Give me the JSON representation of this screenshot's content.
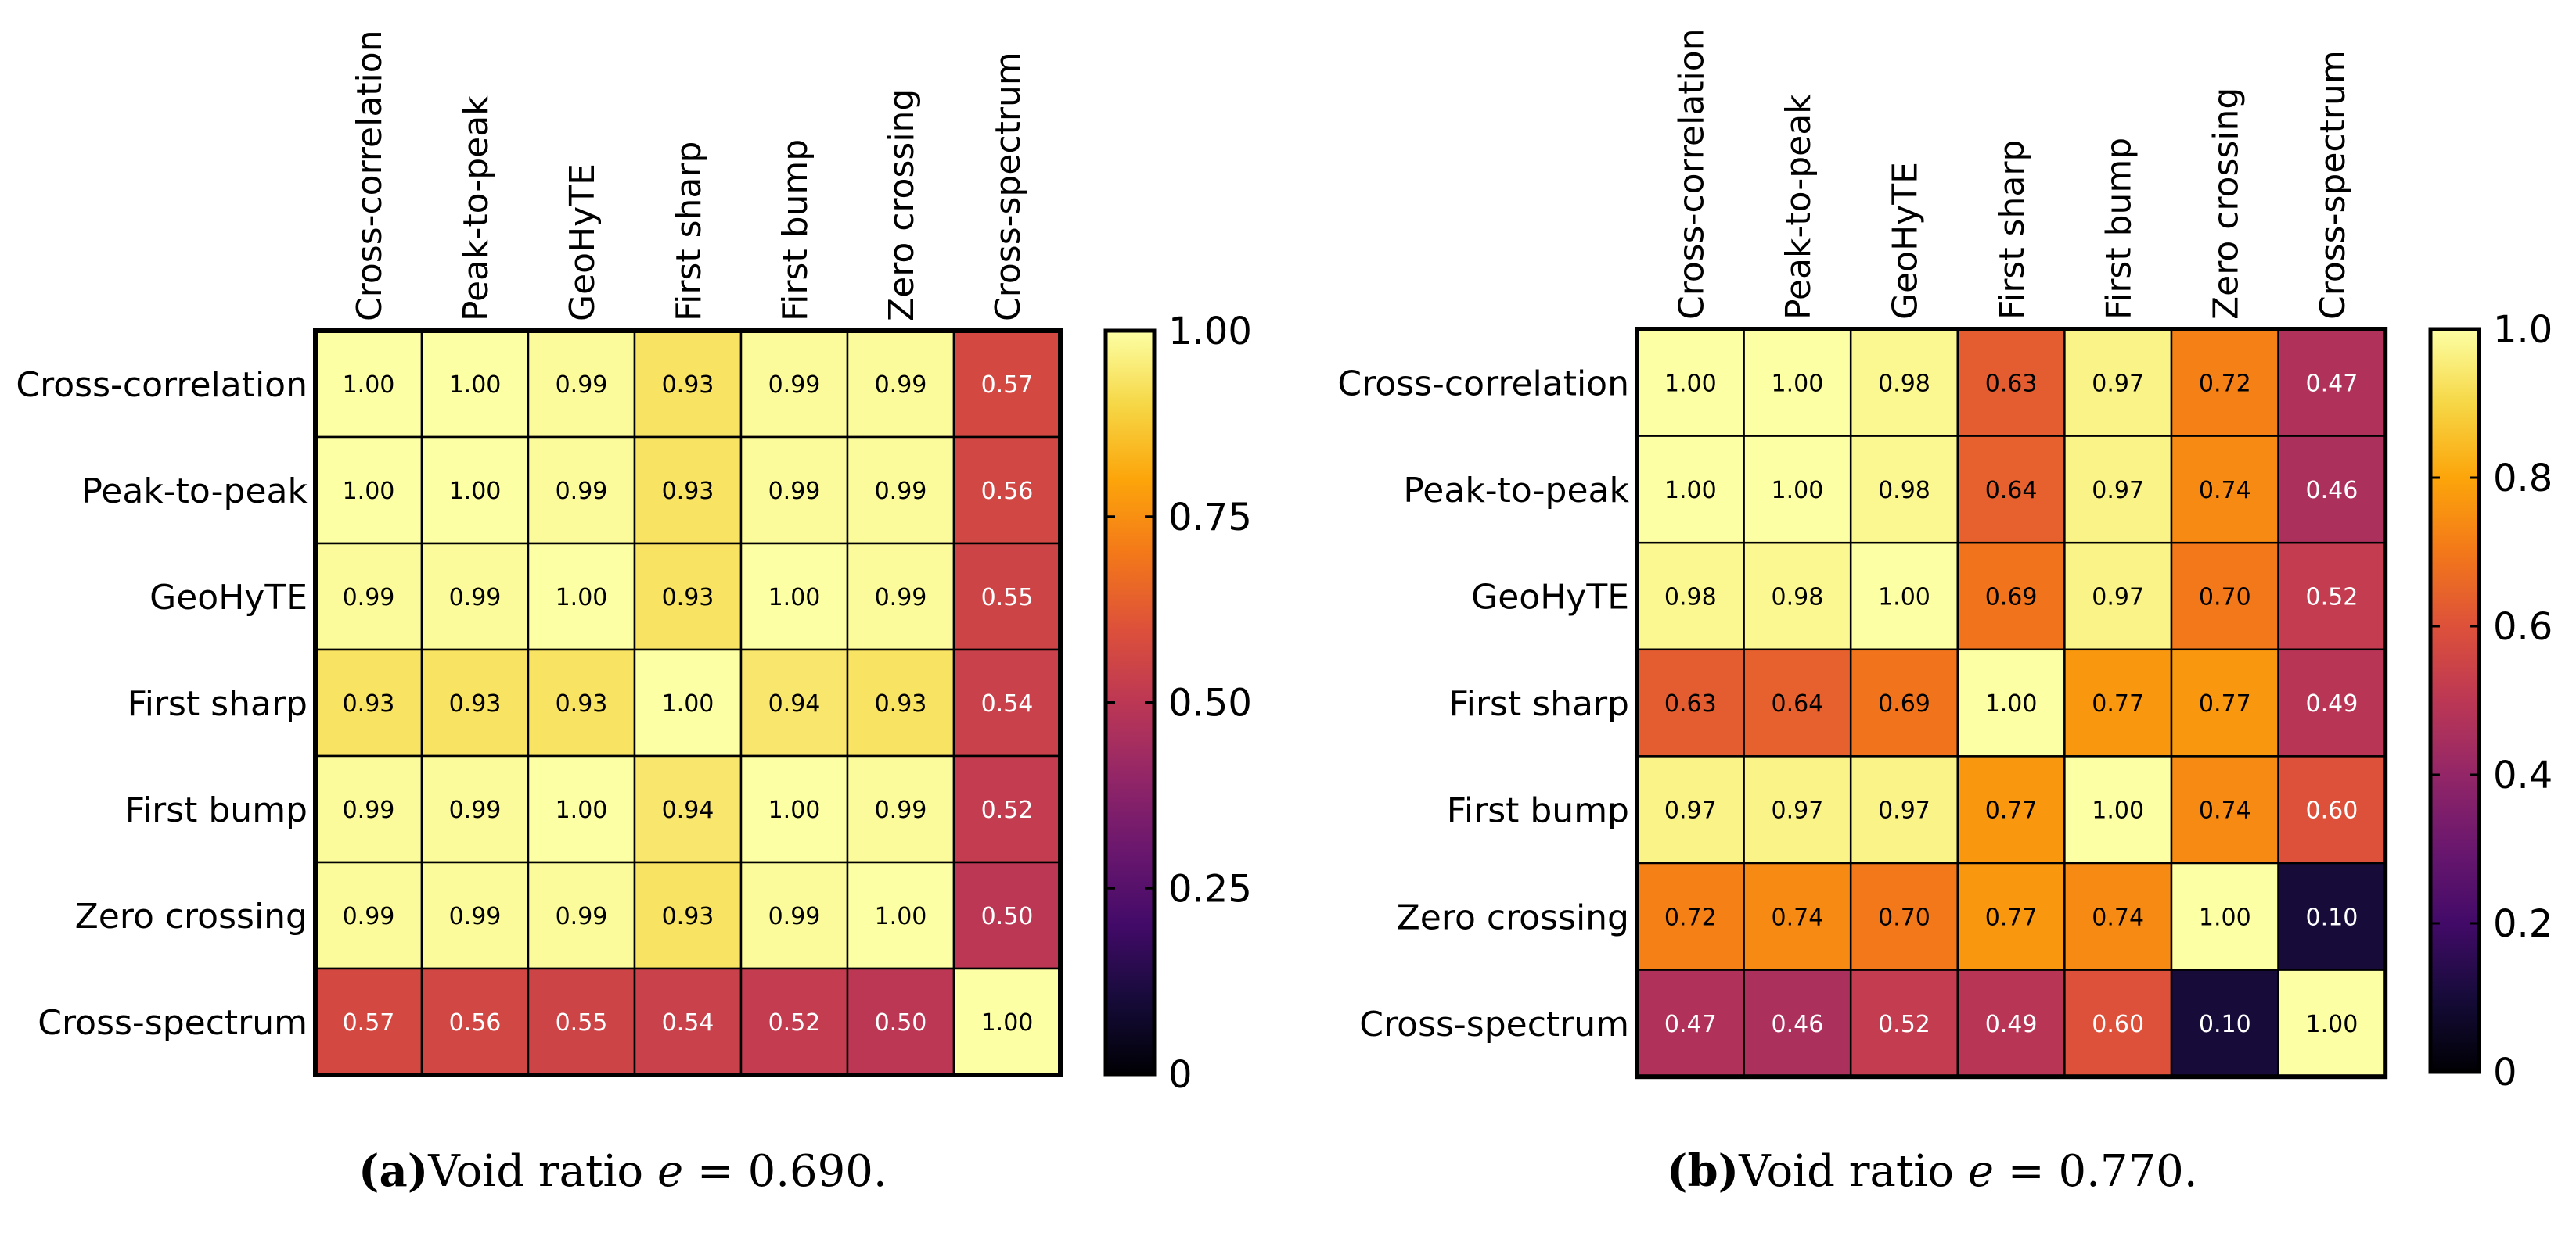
{
  "chart_data": [
    {
      "type": "heatmap",
      "caption_label": "(a)",
      "caption_text": "Void ratio",
      "caption_var": "e",
      "caption_eq": " = 0.690.",
      "labels": [
        "Cross-correlation",
        "Peak-to-peak",
        "GeoHyTE",
        "First sharp",
        "First bump",
        "Zero crossing",
        "Cross-spectrum"
      ],
      "values": [
        [
          1.0,
          1.0,
          0.99,
          0.93,
          0.99,
          0.99,
          0.57
        ],
        [
          1.0,
          1.0,
          0.99,
          0.93,
          0.99,
          0.99,
          0.56
        ],
        [
          0.99,
          0.99,
          1.0,
          0.93,
          1.0,
          0.99,
          0.55
        ],
        [
          0.93,
          0.93,
          0.93,
          1.0,
          0.94,
          0.93,
          0.54
        ],
        [
          0.99,
          0.99,
          1.0,
          0.94,
          1.0,
          0.99,
          0.52
        ],
        [
          0.99,
          0.99,
          0.99,
          0.93,
          0.99,
          1.0,
          0.5
        ],
        [
          0.57,
          0.56,
          0.55,
          0.54,
          0.52,
          0.5,
          1.0
        ]
      ],
      "colorbar": {
        "range": [
          0,
          1
        ],
        "ticks": [
          0,
          0.25,
          0.5,
          0.75,
          1.0
        ],
        "tick_labels": [
          "0",
          "0.25",
          "0.50",
          "0.75",
          "1.00"
        ]
      }
    },
    {
      "type": "heatmap",
      "caption_label": "(b)",
      "caption_text": "Void ratio",
      "caption_var": "e",
      "caption_eq": " = 0.770.",
      "labels": [
        "Cross-correlation",
        "Peak-to-peak",
        "GeoHyTE",
        "First sharp",
        "First bump",
        "Zero crossing",
        "Cross-spectrum"
      ],
      "values": [
        [
          1.0,
          1.0,
          0.98,
          0.63,
          0.97,
          0.72,
          0.47
        ],
        [
          1.0,
          1.0,
          0.98,
          0.64,
          0.97,
          0.74,
          0.46
        ],
        [
          0.98,
          0.98,
          1.0,
          0.69,
          0.97,
          0.7,
          0.52
        ],
        [
          0.63,
          0.64,
          0.69,
          1.0,
          0.77,
          0.77,
          0.49
        ],
        [
          0.97,
          0.97,
          0.97,
          0.77,
          1.0,
          0.74,
          0.6
        ],
        [
          0.72,
          0.74,
          0.7,
          0.77,
          0.74,
          1.0,
          0.1
        ],
        [
          0.47,
          0.46,
          0.52,
          0.49,
          0.6,
          0.1,
          1.0
        ]
      ],
      "colorbar": {
        "range": [
          0,
          1
        ],
        "ticks": [
          0,
          0.2,
          0.4,
          0.6,
          0.8,
          1.0
        ],
        "tick_labels": [
          "0",
          "0.2",
          "0.4",
          "0.6",
          "0.8",
          "1.0"
        ]
      }
    }
  ],
  "colormap": "inferno"
}
